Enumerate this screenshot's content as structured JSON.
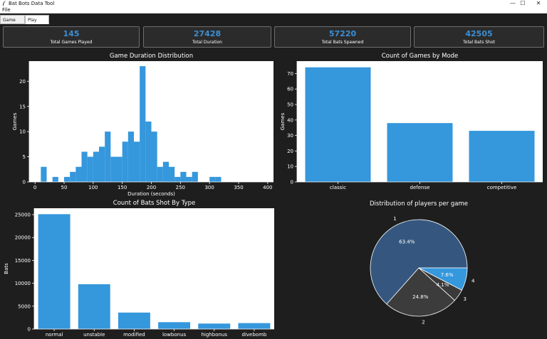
{
  "window": {
    "title": "Bat Bots Data Tool",
    "controls": {
      "minimize": "—",
      "maximize": "☐",
      "close": "✕"
    }
  },
  "menu": {
    "file": "File"
  },
  "tabs": [
    {
      "label": "Game Data",
      "active": false
    },
    {
      "label": "Play Data",
      "active": true
    }
  ],
  "stats": [
    {
      "value": "145",
      "label": "Total Games Played"
    },
    {
      "value": "27428",
      "label": "Total Duration"
    },
    {
      "value": "57220",
      "label": "Total Bats Spawned"
    },
    {
      "value": "42505",
      "label": "Total Bats Shot"
    }
  ],
  "colors": {
    "background": "#1e1e1e",
    "accent": "#3a8fd6",
    "bar": "#3597dc",
    "pie_1": "#35577f",
    "pie_2": "#3c3c3c",
    "pie_3": "#3a3a3a",
    "pie_4": "#3597dc"
  },
  "chart_data": [
    {
      "type": "bar",
      "title": "Game Duration Distribution",
      "xlabel": "Duration (seconds)",
      "ylabel": "Games",
      "bin_width": 10,
      "bin_start": 10,
      "values": [
        3,
        0,
        1,
        0,
        1,
        2,
        3,
        6,
        5,
        6,
        7,
        10,
        5,
        5,
        8,
        10,
        8,
        23,
        12,
        10,
        3,
        4,
        3,
        1,
        2,
        1,
        2,
        0,
        0,
        1,
        1
      ],
      "xticks": [
        0,
        50,
        100,
        150,
        200,
        250,
        300,
        350,
        400
      ],
      "yticks": [
        0,
        5,
        10,
        15,
        20
      ],
      "xlim": [
        -10,
        410
      ],
      "ylim": [
        0,
        24
      ]
    },
    {
      "type": "bar",
      "title": "Count of Games by Mode",
      "xlabel": "",
      "ylabel": "Games",
      "categories": [
        "classic",
        "defense",
        "competitive"
      ],
      "values": [
        74,
        38,
        33
      ],
      "yticks": [
        0,
        10,
        20,
        30,
        40,
        50,
        60,
        70
      ],
      "ylim": [
        0,
        78
      ]
    },
    {
      "type": "bar",
      "title": "Count of Bats Shot By Type",
      "xlabel": "",
      "ylabel": "Bats",
      "categories": [
        "normal",
        "unstable",
        "modified",
        "lowbonus",
        "highbonus",
        "divebomb"
      ],
      "values": [
        25100,
        9800,
        3600,
        1500,
        1200,
        1300
      ],
      "yticks": [
        0,
        5000,
        10000,
        15000,
        20000,
        25000
      ],
      "ylim": [
        0,
        26400
      ]
    },
    {
      "type": "pie",
      "title": "Distribution of players per game",
      "labels": [
        "1",
        "2",
        "3",
        "4"
      ],
      "values": [
        63.4,
        24.8,
        4.1,
        7.6
      ],
      "autopct": [
        "63.4%",
        "24.8%",
        "4.1%",
        "7.6%"
      ]
    }
  ]
}
